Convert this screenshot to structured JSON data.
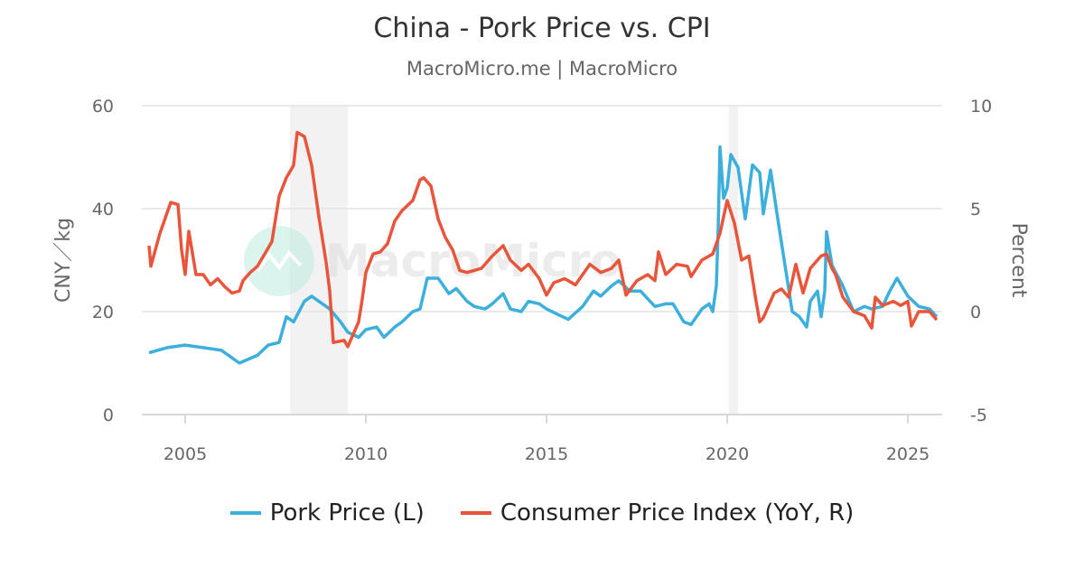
{
  "chart_data": {
    "type": "line",
    "title": "China - Pork Price vs. CPI",
    "subtitle": "MacroMicro.me | MacroMicro",
    "watermark": "MacroMicro",
    "ylabel_left": "CNY／kg",
    "ylabel_right": "Percent",
    "ylim_left": [
      0,
      60
    ],
    "ylim_right": [
      -5,
      10
    ],
    "yticks_left": [
      "0",
      "20",
      "40",
      "60"
    ],
    "yticks_right": [
      "-5",
      "0",
      "5",
      "10"
    ],
    "xlim": [
      2004,
      2026
    ],
    "xticks": [
      "2005",
      "2010",
      "2015",
      "2020",
      "2025"
    ],
    "grid": true,
    "legend_position": "bottom",
    "shaded_periods": [
      [
        2007.9,
        2009.5
      ],
      [
        2020.05,
        2020.3
      ]
    ],
    "series": [
      {
        "name": "Pork Price (L)",
        "axis": "left",
        "color": "#3cafdc",
        "points": [
          [
            2004.0,
            12
          ],
          [
            2004.5,
            13
          ],
          [
            2005.0,
            13.5
          ],
          [
            2005.5,
            13
          ],
          [
            2006.0,
            12.5
          ],
          [
            2006.3,
            11
          ],
          [
            2006.5,
            10
          ],
          [
            2007.0,
            11.5
          ],
          [
            2007.3,
            13.5
          ],
          [
            2007.6,
            14
          ],
          [
            2007.8,
            19
          ],
          [
            2008.0,
            18
          ],
          [
            2008.3,
            22
          ],
          [
            2008.5,
            23
          ],
          [
            2008.8,
            21.5
          ],
          [
            2009.0,
            20.5
          ],
          [
            2009.3,
            18
          ],
          [
            2009.5,
            16
          ],
          [
            2009.8,
            15
          ],
          [
            2010.0,
            16.5
          ],
          [
            2010.3,
            17
          ],
          [
            2010.5,
            15
          ],
          [
            2010.8,
            17
          ],
          [
            2011.0,
            18
          ],
          [
            2011.3,
            20
          ],
          [
            2011.5,
            20.5
          ],
          [
            2011.7,
            26.5
          ],
          [
            2012.0,
            26.5
          ],
          [
            2012.3,
            23.5
          ],
          [
            2012.5,
            24.5
          ],
          [
            2012.8,
            22
          ],
          [
            2013.0,
            21
          ],
          [
            2013.3,
            20.5
          ],
          [
            2013.5,
            21.5
          ],
          [
            2013.8,
            23.5
          ],
          [
            2014.0,
            20.5
          ],
          [
            2014.3,
            20
          ],
          [
            2014.5,
            22
          ],
          [
            2014.8,
            21.5
          ],
          [
            2015.0,
            20.5
          ],
          [
            2015.3,
            19.5
          ],
          [
            2015.6,
            18.5
          ],
          [
            2016.0,
            21
          ],
          [
            2016.3,
            24
          ],
          [
            2016.5,
            23
          ],
          [
            2016.8,
            25
          ],
          [
            2017.0,
            26
          ],
          [
            2017.3,
            24
          ],
          [
            2017.6,
            24
          ],
          [
            2017.8,
            22.5
          ],
          [
            2018.0,
            21
          ],
          [
            2018.3,
            21.5
          ],
          [
            2018.5,
            21.5
          ],
          [
            2018.8,
            18
          ],
          [
            2019.0,
            17.5
          ],
          [
            2019.3,
            20.5
          ],
          [
            2019.5,
            21.5
          ],
          [
            2019.6,
            20
          ],
          [
            2019.7,
            25
          ],
          [
            2019.75,
            36
          ],
          [
            2019.8,
            52
          ],
          [
            2019.9,
            42
          ],
          [
            2020.0,
            44
          ],
          [
            2020.1,
            50.5
          ],
          [
            2020.3,
            48
          ],
          [
            2020.5,
            38
          ],
          [
            2020.7,
            48.5
          ],
          [
            2020.9,
            47
          ],
          [
            2021.0,
            39
          ],
          [
            2021.2,
            47.5
          ],
          [
            2021.4,
            38
          ],
          [
            2021.6,
            29
          ],
          [
            2021.8,
            20
          ],
          [
            2022.0,
            19
          ],
          [
            2022.2,
            17
          ],
          [
            2022.3,
            22
          ],
          [
            2022.5,
            24
          ],
          [
            2022.6,
            19
          ],
          [
            2022.7,
            24
          ],
          [
            2022.75,
            35.5
          ],
          [
            2022.9,
            29
          ],
          [
            2023.2,
            25
          ],
          [
            2023.5,
            20
          ],
          [
            2023.8,
            21
          ],
          [
            2024.0,
            20.5
          ],
          [
            2024.3,
            21
          ],
          [
            2024.5,
            24
          ],
          [
            2024.7,
            26.5
          ],
          [
            2025.0,
            23
          ],
          [
            2025.3,
            21
          ],
          [
            2025.6,
            20.5
          ],
          [
            2025.8,
            19
          ]
        ]
      },
      {
        "name": "Consumer Price Index (YoY, R)",
        "axis": "right",
        "color": "#e9553b",
        "points": [
          [
            2004.0,
            3.2
          ],
          [
            2004.05,
            2.2
          ],
          [
            2004.3,
            3.8
          ],
          [
            2004.6,
            5.3
          ],
          [
            2004.8,
            5.2
          ],
          [
            2004.9,
            3.0
          ],
          [
            2005.0,
            1.8
          ],
          [
            2005.1,
            3.9
          ],
          [
            2005.3,
            1.8
          ],
          [
            2005.5,
            1.8
          ],
          [
            2005.7,
            1.3
          ],
          [
            2005.9,
            1.6
          ],
          [
            2006.1,
            1.2
          ],
          [
            2006.3,
            0.9
          ],
          [
            2006.5,
            1.0
          ],
          [
            2006.6,
            1.5
          ],
          [
            2006.8,
            1.9
          ],
          [
            2007.0,
            2.2
          ],
          [
            2007.2,
            2.8
          ],
          [
            2007.4,
            3.4
          ],
          [
            2007.6,
            5.6
          ],
          [
            2007.8,
            6.5
          ],
          [
            2008.0,
            7.1
          ],
          [
            2008.1,
            8.7
          ],
          [
            2008.3,
            8.5
          ],
          [
            2008.5,
            7.1
          ],
          [
            2008.7,
            4.6
          ],
          [
            2008.9,
            2.4
          ],
          [
            2009.0,
            1.0
          ],
          [
            2009.1,
            -1.5
          ],
          [
            2009.4,
            -1.4
          ],
          [
            2009.5,
            -1.7
          ],
          [
            2009.8,
            -0.5
          ],
          [
            2009.9,
            0.6
          ],
          [
            2010.0,
            1.9
          ],
          [
            2010.2,
            2.8
          ],
          [
            2010.4,
            2.9
          ],
          [
            2010.6,
            3.3
          ],
          [
            2010.8,
            4.4
          ],
          [
            2011.0,
            4.9
          ],
          [
            2011.3,
            5.4
          ],
          [
            2011.5,
            6.4
          ],
          [
            2011.6,
            6.5
          ],
          [
            2011.8,
            6.1
          ],
          [
            2012.0,
            4.5
          ],
          [
            2012.2,
            3.6
          ],
          [
            2012.4,
            3.0
          ],
          [
            2012.6,
            2.0
          ],
          [
            2012.8,
            1.9
          ],
          [
            2013.0,
            2.0
          ],
          [
            2013.2,
            2.1
          ],
          [
            2013.5,
            2.7
          ],
          [
            2013.8,
            3.2
          ],
          [
            2014.0,
            2.5
          ],
          [
            2014.3,
            2.0
          ],
          [
            2014.5,
            2.3
          ],
          [
            2014.8,
            1.6
          ],
          [
            2015.0,
            0.8
          ],
          [
            2015.2,
            1.4
          ],
          [
            2015.5,
            1.6
          ],
          [
            2015.8,
            1.3
          ],
          [
            2016.0,
            1.8
          ],
          [
            2016.2,
            2.3
          ],
          [
            2016.5,
            1.9
          ],
          [
            2016.8,
            2.1
          ],
          [
            2017.0,
            2.5
          ],
          [
            2017.2,
            0.8
          ],
          [
            2017.5,
            1.5
          ],
          [
            2017.8,
            1.8
          ],
          [
            2018.0,
            1.5
          ],
          [
            2018.1,
            2.9
          ],
          [
            2018.3,
            1.8
          ],
          [
            2018.6,
            2.3
          ],
          [
            2018.9,
            2.2
          ],
          [
            2019.0,
            1.7
          ],
          [
            2019.3,
            2.5
          ],
          [
            2019.6,
            2.8
          ],
          [
            2019.8,
            3.8
          ],
          [
            2020.0,
            5.4
          ],
          [
            2020.2,
            4.3
          ],
          [
            2020.4,
            2.5
          ],
          [
            2020.6,
            2.7
          ],
          [
            2020.8,
            0.5
          ],
          [
            2020.9,
            -0.5
          ],
          [
            2021.0,
            -0.3
          ],
          [
            2021.3,
            0.9
          ],
          [
            2021.5,
            1.1
          ],
          [
            2021.7,
            0.7
          ],
          [
            2021.9,
            2.3
          ],
          [
            2022.1,
            0.9
          ],
          [
            2022.3,
            2.1
          ],
          [
            2022.6,
            2.7
          ],
          [
            2022.75,
            2.8
          ],
          [
            2022.9,
            2.1
          ],
          [
            2023.0,
            1.8
          ],
          [
            2023.2,
            0.7
          ],
          [
            2023.5,
            0.0
          ],
          [
            2023.8,
            -0.2
          ],
          [
            2024.0,
            -0.8
          ],
          [
            2024.1,
            0.7
          ],
          [
            2024.3,
            0.3
          ],
          [
            2024.6,
            0.5
          ],
          [
            2024.8,
            0.3
          ],
          [
            2025.0,
            0.5
          ],
          [
            2025.1,
            -0.7
          ],
          [
            2025.3,
            0.0
          ],
          [
            2025.6,
            0.0
          ],
          [
            2025.8,
            -0.4
          ]
        ]
      }
    ]
  }
}
